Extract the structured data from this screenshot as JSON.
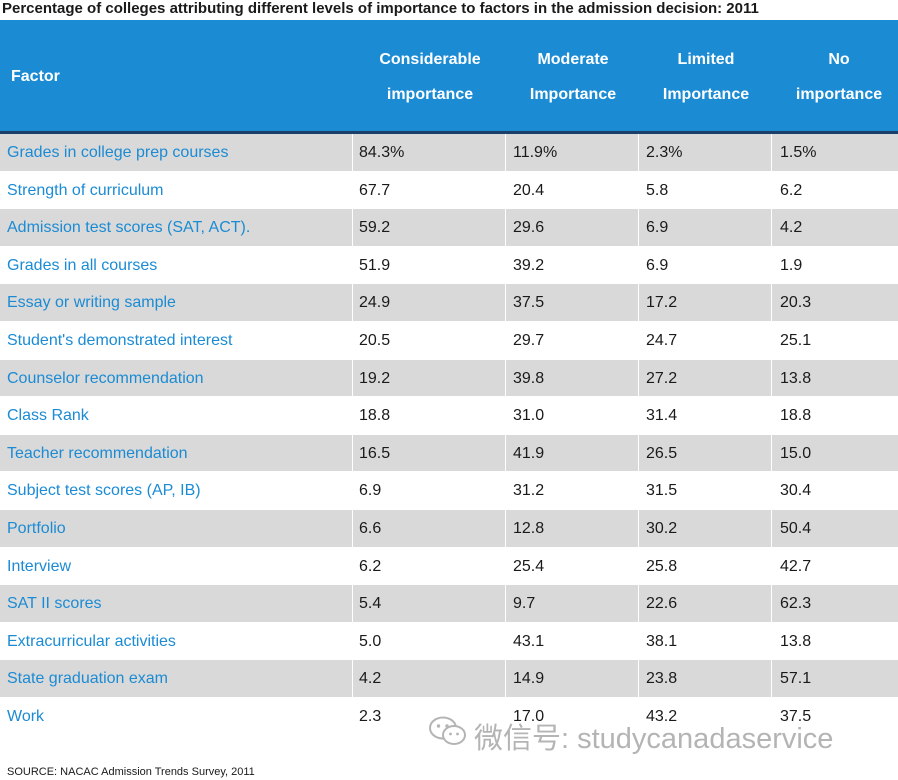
{
  "chart_data": {
    "type": "table",
    "title": "Percentage of colleges attributing different levels of importance to factors in the admission decision: 2011",
    "columns": [
      "Factor",
      "Considerable importance",
      "Moderate Importance",
      "Limited Importance",
      "No importance"
    ],
    "column_lines": {
      "factor": [
        "Factor"
      ],
      "c1": [
        "Considerable",
        "importance"
      ],
      "c2": [
        "Moderate",
        "Importance"
      ],
      "c3": [
        "Limited",
        "Importance"
      ],
      "c4": [
        "No",
        "importance"
      ]
    },
    "rows": [
      [
        "Grades in college prep courses",
        "84.3%",
        "11.9%",
        "2.3%",
        "1.5%"
      ],
      [
        "Strength of curriculum",
        "67.7",
        "20.4",
        "5.8",
        "6.2"
      ],
      [
        "Admission test scores (SAT, ACT).",
        "59.2",
        "29.6",
        "6.9",
        "4.2"
      ],
      [
        "Grades in all courses",
        "51.9",
        "39.2",
        "6.9",
        "1.9"
      ],
      [
        "Essay or writing sample",
        "24.9",
        "37.5",
        "17.2",
        "20.3"
      ],
      [
        "Student's demonstrated interest",
        "20.5",
        "29.7",
        "24.7",
        "25.1"
      ],
      [
        "Counselor recommendation",
        "19.2",
        "39.8",
        "27.2",
        "13.8"
      ],
      [
        "Class Rank",
        "18.8",
        "31.0",
        "31.4",
        "18.8"
      ],
      [
        "Teacher recommendation",
        "16.5",
        "41.9",
        "26.5",
        "15.0"
      ],
      [
        "Subject test scores (AP, IB)",
        "6.9",
        "31.2",
        "31.5",
        "30.4"
      ],
      [
        "Portfolio",
        "6.6",
        "12.8",
        "30.2",
        "50.4"
      ],
      [
        "Interview",
        "6.2",
        "25.4",
        "25.8",
        "42.7"
      ],
      [
        "SAT II scores",
        "5.4",
        "9.7",
        "22.6",
        "62.3"
      ],
      [
        "Extracurricular activities",
        "5.0",
        "43.1",
        "38.1",
        "13.8"
      ],
      [
        "State graduation exam",
        "4.2",
        "14.9",
        "23.8",
        "57.1"
      ],
      [
        "Work",
        "2.3",
        "17.0",
        "43.2",
        "37.5"
      ]
    ],
    "source": "SOURCE: NACAC Admission Trends Survey, 2011"
  },
  "watermark": {
    "text": "微信号: studycanadaservice",
    "icon": "wechat-icon"
  },
  "colors": {
    "header_bg": "#1b8bd4",
    "header_border": "#1a3f6a",
    "alt_row_bg": "#d9d9d9",
    "factor_text": "#1b8bd4"
  }
}
